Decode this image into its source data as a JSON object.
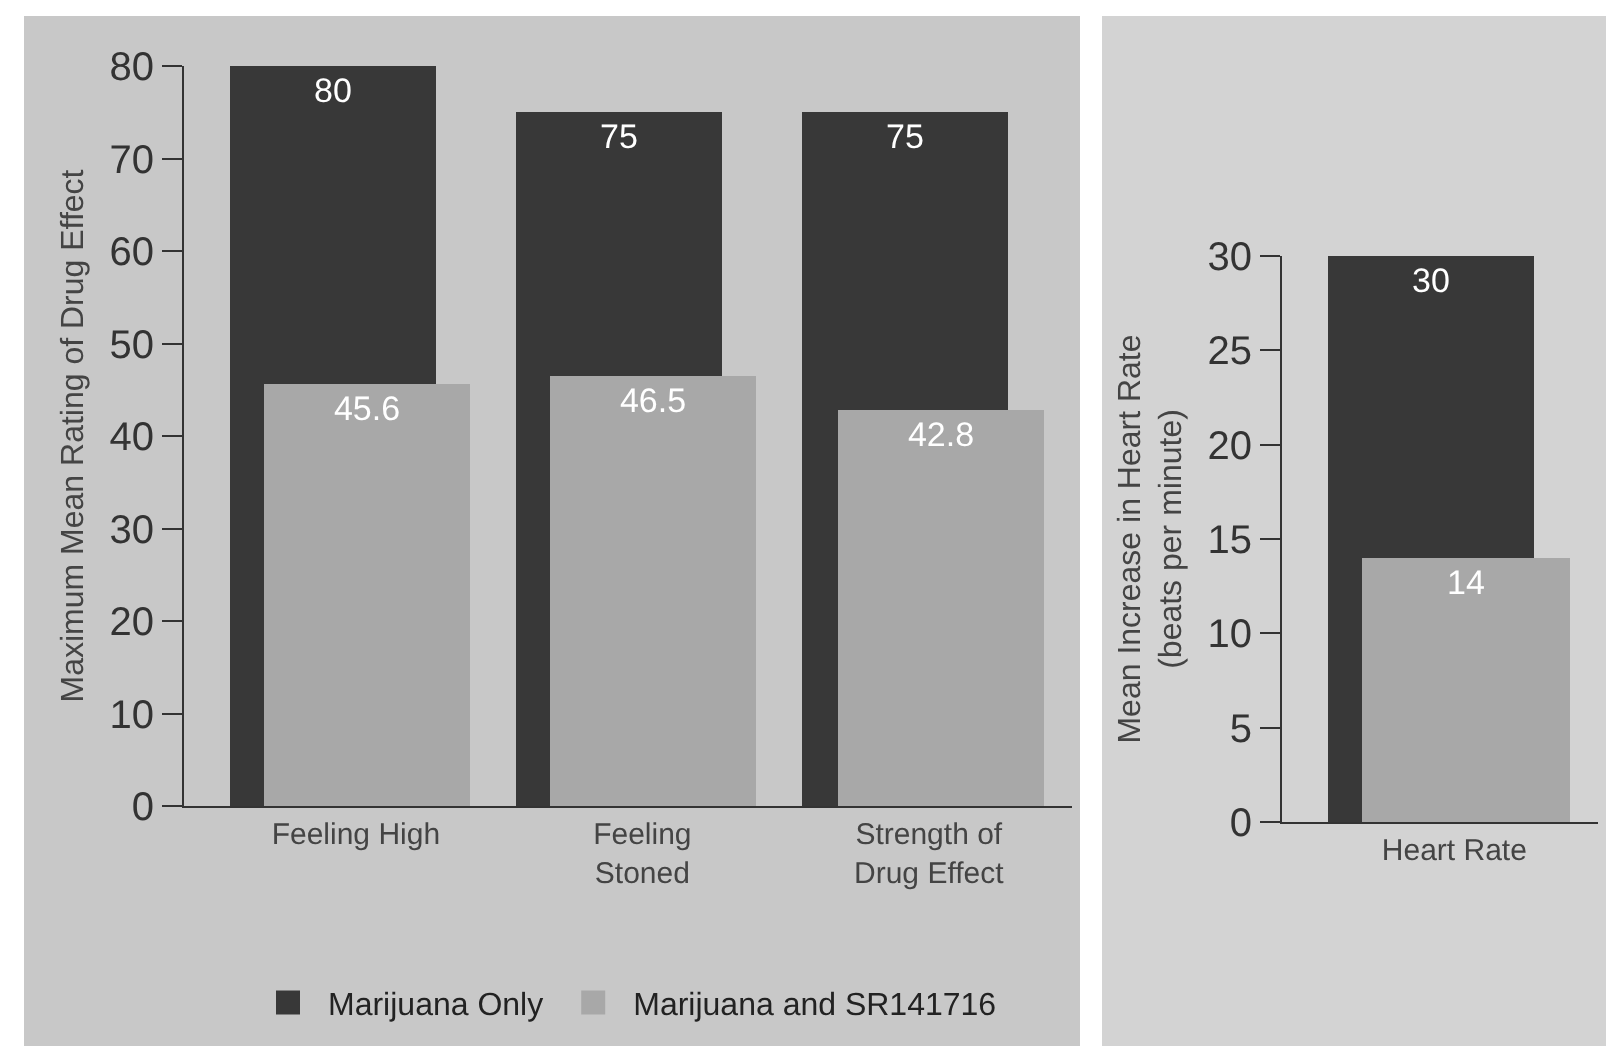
{
  "chart_data": [
    {
      "type": "bar",
      "ylabel": "Maximum Mean Rating of Drug Effect",
      "categories": [
        "Feeling High",
        "Feeling Stoned",
        "Strength of Drug Effect"
      ],
      "series": [
        {
          "name": "Marijuana Only",
          "color": "#383838",
          "values": [
            80,
            75,
            75
          ]
        },
        {
          "name": "Marijuana and SR141716",
          "color": "#a8a8a8",
          "values": [
            45.6,
            46.5,
            42.8
          ]
        }
      ],
      "ylim": [
        0,
        80
      ],
      "yticks": [
        0,
        10,
        20,
        30,
        40,
        50,
        60,
        70,
        80
      ],
      "grid": false,
      "legend": "bottom",
      "data_labels": true
    },
    {
      "type": "bar",
      "ylabel": "Mean Increase in Heart Rate (beats per minute)",
      "categories": [
        "Heart Rate"
      ],
      "series": [
        {
          "color": "#383838",
          "values": [
            30
          ]
        },
        {
          "color": "#a8a8a8",
          "values": [
            14
          ]
        }
      ],
      "ylim": [
        0,
        30
      ],
      "yticks": [
        0,
        5,
        10,
        15,
        20,
        25,
        30
      ],
      "grid": false,
      "legend": false,
      "data_labels": true
    }
  ]
}
